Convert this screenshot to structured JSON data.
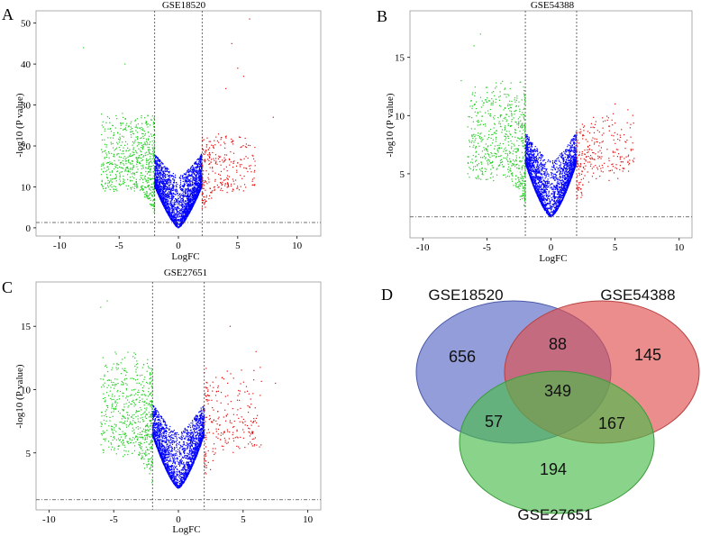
{
  "chart_data": [
    {
      "type": "scatter",
      "panel_label": "A",
      "title": "GSE18520",
      "xlabel": "LogFC",
      "ylabel": "-log10 (P value)",
      "xlim": [
        -12,
        12
      ],
      "ylim": [
        -2,
        53
      ],
      "xticks": [
        -10,
        -5,
        0,
        5,
        10
      ],
      "yticks": [
        0,
        10,
        20,
        30,
        40,
        50
      ],
      "fc_cutoffs": [
        -2,
        2
      ],
      "p_cutoff": 1.3,
      "colors": {
        "down": "#22cc22",
        "nonsig": "#0000ff",
        "up": "#e01010"
      },
      "shape": {
        "k": 4.0,
        "exponent": 1.35,
        "spread_x": 1.2,
        "max_extra": 30,
        "y_floor": 0
      },
      "series": [
        {
          "name": "down",
          "count": 700,
          "x_range": [
            -6.5,
            -2
          ],
          "y_range": [
            2,
            30
          ]
        },
        {
          "name": "nonsig",
          "count": 2600,
          "x_range": [
            -2,
            2
          ],
          "y_range": [
            0,
            28
          ]
        },
        {
          "name": "up",
          "count": 280,
          "x_range": [
            2,
            6.5
          ],
          "y_range": [
            2,
            25
          ]
        }
      ],
      "outliers": [
        {
          "x": 6,
          "y": 51
        },
        {
          "x": 4.5,
          "y": 45
        },
        {
          "x": 5,
          "y": 39
        },
        {
          "x": 4,
          "y": 34
        },
        {
          "x": -4.5,
          "y": 40
        },
        {
          "x": -8,
          "y": 44
        },
        {
          "x": 8,
          "y": 27
        },
        {
          "x": 5.5,
          "y": 37
        }
      ]
    },
    {
      "type": "scatter",
      "panel_label": "B",
      "title": "GSE54388",
      "xlabel": "LogFC",
      "ylabel": "-log10 (P value)",
      "xlim": [
        -11,
        11
      ],
      "ylim": [
        -0.5,
        19
      ],
      "xticks": [
        -10,
        -5,
        0,
        5,
        10
      ],
      "yticks": [
        5,
        10,
        15
      ],
      "fc_cutoffs": [
        -2,
        2
      ],
      "p_cutoff": 1.3,
      "colors": {
        "down": "#22cc22",
        "nonsig": "#0000ff",
        "up": "#e01010"
      },
      "shape": {
        "k": 1.7,
        "exponent": 1.45,
        "spread_x": 0.5,
        "max_extra": 9,
        "y_floor": 1.3
      },
      "series": [
        {
          "name": "down",
          "count": 650,
          "x_range": [
            -6.5,
            -2
          ],
          "y_range": [
            1.5,
            14
          ]
        },
        {
          "name": "nonsig",
          "count": 2400,
          "x_range": [
            -2,
            2
          ],
          "y_range": [
            1.3,
            12
          ]
        },
        {
          "name": "up",
          "count": 260,
          "x_range": [
            2,
            6.5
          ],
          "y_range": [
            1.5,
            11
          ]
        }
      ],
      "outliers": [
        {
          "x": -5.5,
          "y": 17
        },
        {
          "x": -6,
          "y": 16
        },
        {
          "x": 6,
          "y": 10.5
        },
        {
          "x": 5,
          "y": 11
        },
        {
          "x": -7,
          "y": 13
        }
      ]
    },
    {
      "type": "scatter",
      "panel_label": "C",
      "title": "GSE27651",
      "xlabel": "LogFC",
      "ylabel": "-log10 (P value)",
      "xlim": [
        -11,
        11
      ],
      "ylim": [
        0.5,
        18.5
      ],
      "xticks": [
        -10,
        -5,
        0,
        5,
        10
      ],
      "yticks": [
        5,
        10,
        15
      ],
      "fc_cutoffs": [
        -2,
        2
      ],
      "p_cutoff": 1.3,
      "colors": {
        "down": "#22cc22",
        "nonsig": "#0000ff",
        "up": "#e01010"
      },
      "shape": {
        "k": 1.6,
        "exponent": 1.4,
        "spread_x": 0.5,
        "max_extra": 8,
        "y_floor": 2.2
      },
      "series": [
        {
          "name": "down",
          "count": 600,
          "x_range": [
            -6,
            -2
          ],
          "y_range": [
            2.2,
            14
          ]
        },
        {
          "name": "nonsig",
          "count": 2200,
          "x_range": [
            -2,
            2
          ],
          "y_range": [
            2.2,
            12
          ]
        },
        {
          "name": "up",
          "count": 240,
          "x_range": [
            2,
            6.5
          ],
          "y_range": [
            2.2,
            13
          ]
        }
      ],
      "outliers": [
        {
          "x": -5.5,
          "y": 17
        },
        {
          "x": -6,
          "y": 16.5
        },
        {
          "x": 4,
          "y": 15
        },
        {
          "x": 7.5,
          "y": 10.5
        },
        {
          "x": 6,
          "y": 13
        }
      ]
    },
    {
      "type": "venn",
      "panel_label": "D",
      "sets": [
        "GSE18520",
        "GSE54388",
        "GSE27651"
      ],
      "set_colors": [
        "#5868c4",
        "#e05050",
        "#4cbb4c"
      ],
      "regions": {
        "GSE18520_only": 656,
        "GSE54388_only": 145,
        "GSE27651_only": 194,
        "GSE18520_GSE54388": 88,
        "GSE18520_GSE27651": 57,
        "GSE54388_GSE27651": 167,
        "all_three": 349
      }
    }
  ]
}
